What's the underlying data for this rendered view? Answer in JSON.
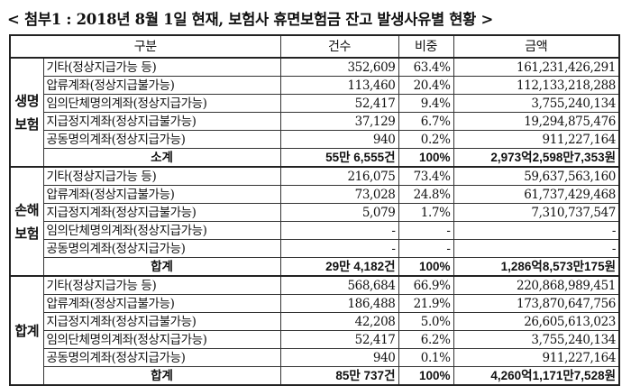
{
  "title": "< 첨부1 : 2018년 8월 1일 현재, 보험사 휴면보험금 잔고 발생사유별 현황 >",
  "headers": [
    "구분",
    "건수",
    "비중",
    "금액"
  ],
  "sections": [
    {
      "group": "생명보험",
      "rows": [
        {
          "label": "기타(정상지급가능 등)",
          "count": "352,609",
          "ratio": "63.4%",
          "amount": "161,231,426,291"
        },
        {
          "label": "압류계좌(정상지급불가능)",
          "count": "113,460",
          "ratio": "20.4%",
          "amount": "112,133,218,288"
        },
        {
          "label": "임의단체명의계좌(정상지급가능)",
          "count": "52,417",
          "ratio": "9.4%",
          "amount": "3,755,240,134"
        },
        {
          "label": "지급정지계좌(정상지급불가능)",
          "count": "37,129",
          "ratio": "6.7%",
          "amount": "19,294,875,476"
        },
        {
          "label": "공동명의계좌(정상지급가능)",
          "count": "940",
          "ratio": "0.2%",
          "amount": "911,227,164"
        }
      ],
      "total": {
        "label": "소계",
        "count": "55만 6,555건",
        "ratio": "100%",
        "amount": "2,973억2,598만7,353원"
      }
    },
    {
      "group": "손해보험",
      "rows": [
        {
          "label": "기타(정상지급가능 등)",
          "count": "216,075",
          "ratio": "73.4%",
          "amount": "59,637,563,160"
        },
        {
          "label": "압류계좌(정상지급불가능)",
          "count": "73,028",
          "ratio": "24.8%",
          "amount": "61,737,429,468"
        },
        {
          "label": "지급정지계좌(정상지급불가능)",
          "count": "5,079",
          "ratio": "1.7%",
          "amount": "7,310,737,547"
        },
        {
          "label": "임의단체명의계좌(정상지급가능)",
          "count": "-",
          "ratio": "-",
          "amount": "-"
        },
        {
          "label": "공동명의계좌(정상지급가능)",
          "count": "-",
          "ratio": "-",
          "amount": "-"
        }
      ],
      "total": {
        "label": "합계",
        "count": "29만 4,182건",
        "ratio": "100%",
        "amount": "1,286억8,573만175원"
      }
    },
    {
      "group": "합계",
      "rows": [
        {
          "label": "기타(정상지급가능 등)",
          "count": "568,684",
          "ratio": "66.9%",
          "amount": "220,868,989,451"
        },
        {
          "label": "압류계좌(정상지급불가능)",
          "count": "186,488",
          "ratio": "21.9%",
          "amount": "173,870,647,756"
        },
        {
          "label": "지급정지계좌(정상지급불가능)",
          "count": "42,208",
          "ratio": "5.0%",
          "amount": "26,605,613,023"
        },
        {
          "label": "임의단체명의계좌(정상지급가능)",
          "count": "52,417",
          "ratio": "6.2%",
          "amount": "3,755,240,134"
        },
        {
          "label": "공동명의계좌(정상지급가능)",
          "count": "940",
          "ratio": "0.1%",
          "amount": "911,227,164"
        }
      ],
      "total": {
        "label": "합계",
        "count": "85만 737건",
        "ratio": "100%",
        "amount": "4,260억1,171만7,528원"
      }
    }
  ]
}
